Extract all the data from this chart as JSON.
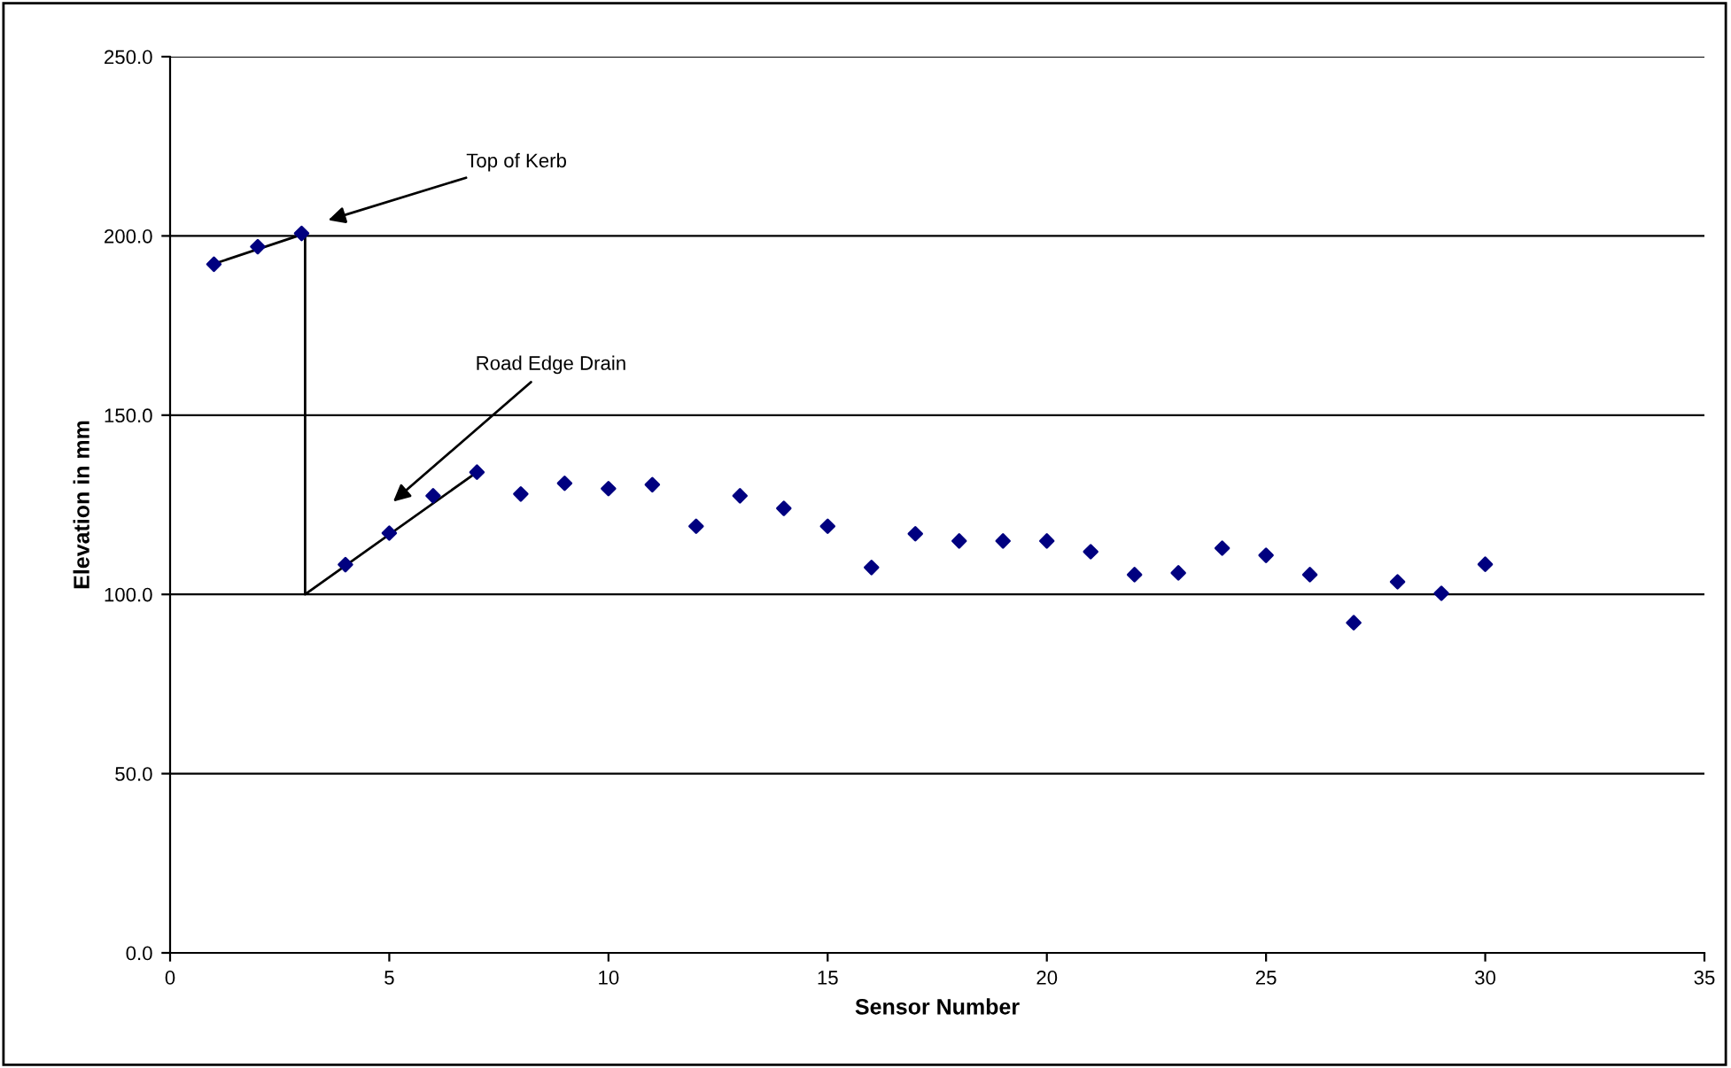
{
  "chart_data": {
    "type": "scatter",
    "xlabel": "Sensor Number",
    "ylabel": "Elevation in mm",
    "x": [
      1,
      2,
      3,
      4,
      5,
      6,
      7,
      8,
      9,
      10,
      11,
      12,
      13,
      14,
      15,
      16,
      17,
      18,
      19,
      20,
      21,
      22,
      23,
      24,
      25,
      26,
      27,
      28,
      29,
      30
    ],
    "series": [
      {
        "color": "#000080",
        "values": [
          192.1,
          197.0,
          200.7,
          108.3,
          117.1,
          127.5,
          134.1,
          128.0,
          131.0,
          129.5,
          130.6,
          119.0,
          127.5,
          124.0,
          119.0,
          107.5,
          116.9,
          114.9,
          114.9,
          114.9,
          111.9,
          105.5,
          106.0,
          112.9,
          110.9,
          105.5,
          92.1,
          103.5,
          100.3,
          108.4
        ],
        "marker": "diamond"
      },
      {
        "type": "line",
        "color": "#000000",
        "x": [
          1.1,
          3.08,
          3.08,
          7.0
        ],
        "values": [
          192.6,
          200.7,
          100,
          134.1
        ],
        "marker": "none"
      }
    ],
    "annotations": [
      "Top of Kerb",
      "Road Edge Drain"
    ],
    "xlim": [
      0,
      35
    ],
    "xticks": [
      0,
      5,
      10,
      15,
      20,
      25,
      30,
      35
    ],
    "ylim": [
      0,
      250
    ],
    "yticks": [
      {
        "value": 0,
        "label": "0.0"
      },
      {
        "value": 50,
        "label": "50.0"
      },
      {
        "value": 100,
        "label": "100.0"
      },
      {
        "value": 150,
        "label": "150.0"
      },
      {
        "value": 200,
        "label": "200.0"
      },
      {
        "value": 250,
        "label": "250.0"
      }
    ],
    "grid": "y",
    "legend": false
  }
}
